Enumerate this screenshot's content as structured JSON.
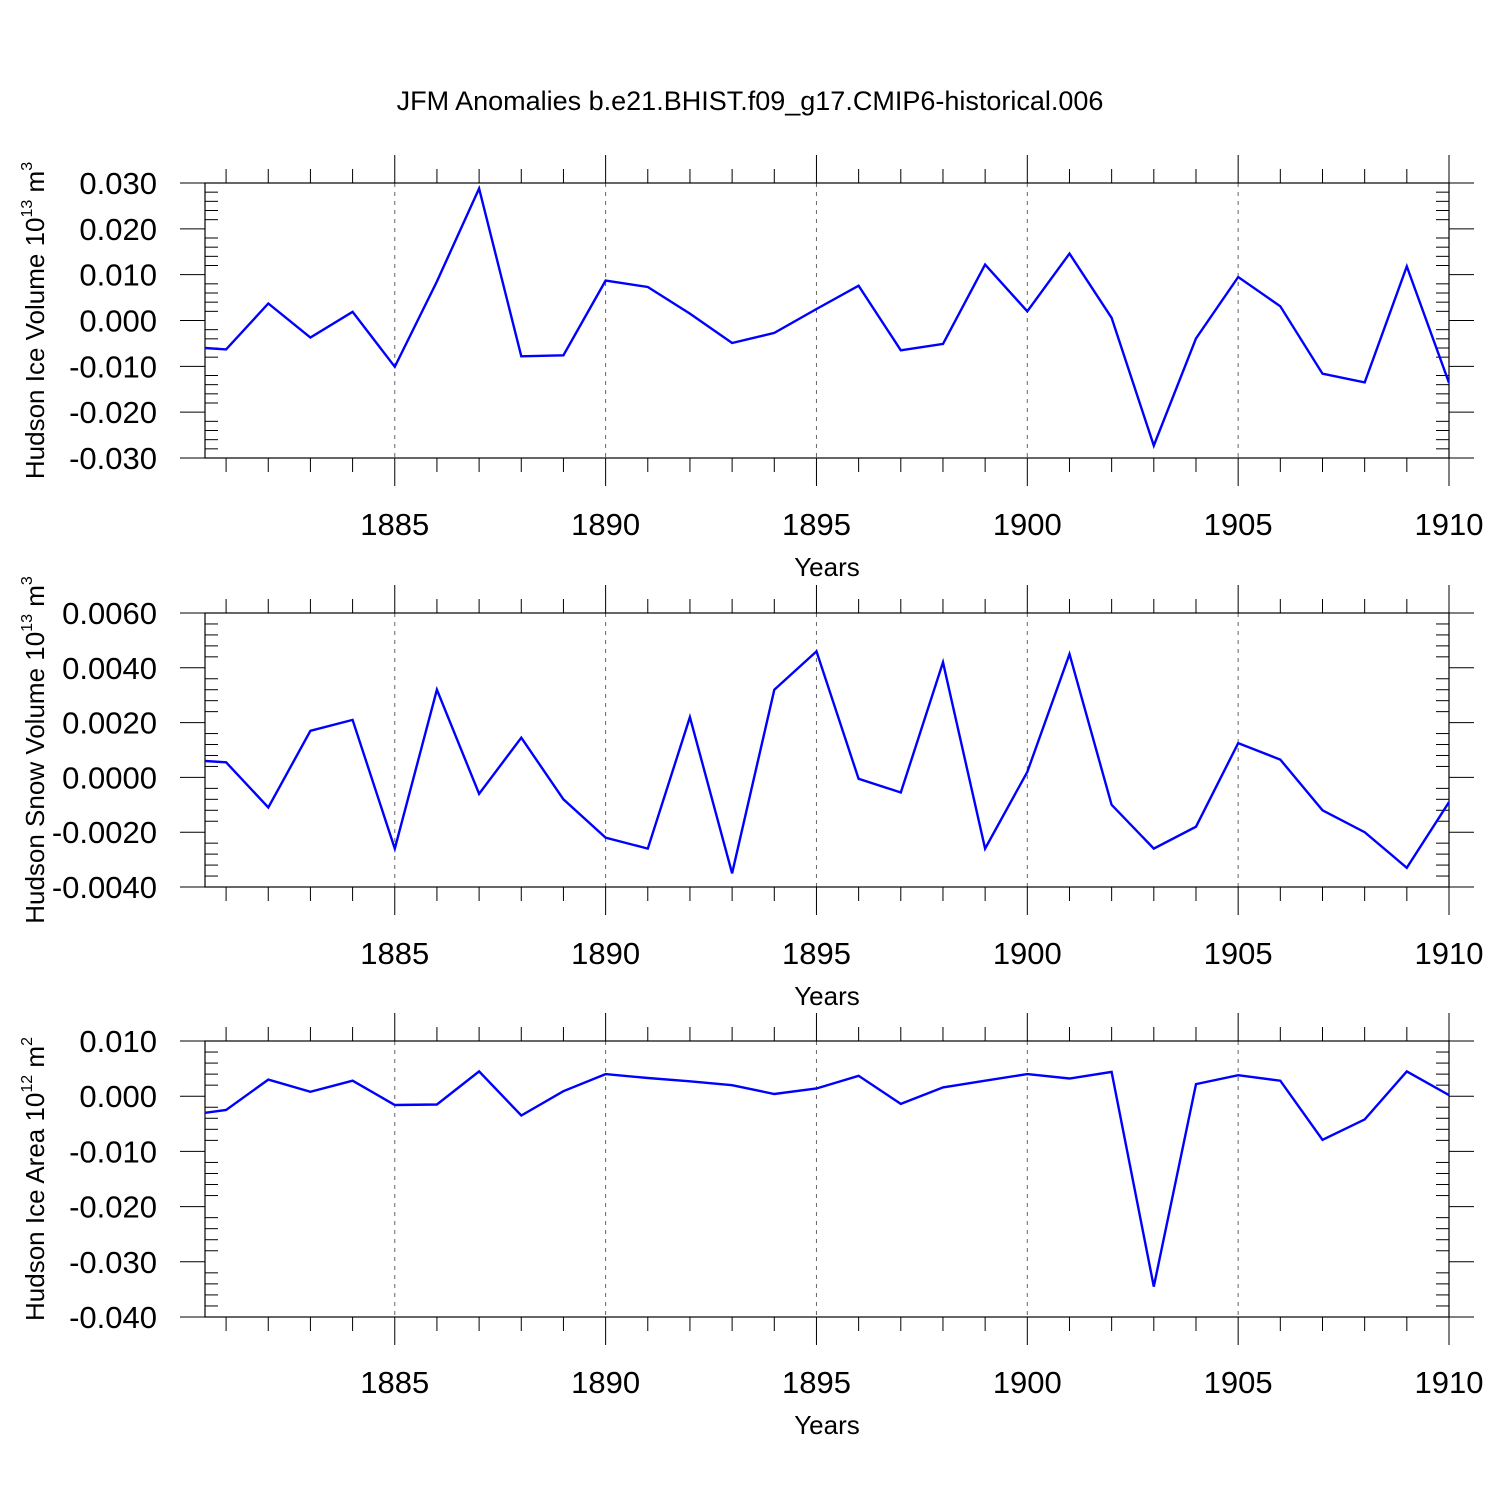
{
  "title": "JFM Anomalies b.e21.BHIST.f09_g17.CMIP6-historical.006",
  "colors": {
    "line": "#0000ff",
    "axis": "#000000",
    "grid": "#666666"
  },
  "chart_data": [
    {
      "type": "line",
      "xlabel": "Years",
      "ylabel": {
        "base": "Hudson Ice Volume 10",
        "exp": "13",
        "unit": " m",
        "unit_exp": "3"
      },
      "xlim": [
        1880.5,
        1910
      ],
      "ylim": [
        -0.03,
        0.03
      ],
      "x_ticks": [
        1885,
        1890,
        1895,
        1900,
        1905,
        1910
      ],
      "x_tick_labels": [
        "1885",
        "1890",
        "1895",
        "1900",
        "1905",
        "1910"
      ],
      "y_ticks": [
        0.03,
        0.02,
        0.01,
        0.0,
        -0.01,
        -0.02,
        -0.03
      ],
      "y_tick_labels": [
        "0.030",
        "0.020",
        "0.010",
        "0.000",
        "-0.010",
        "-0.020",
        "-0.030"
      ],
      "grid": "vertical dashed at major x ticks",
      "x": [
        1880.5,
        1881,
        1882,
        1883,
        1884,
        1885,
        1886,
        1887,
        1888,
        1889,
        1890,
        1891,
        1892,
        1893,
        1894,
        1895,
        1896,
        1897,
        1898,
        1899,
        1900,
        1901,
        1902,
        1903,
        1904,
        1905,
        1906,
        1907,
        1908,
        1909,
        1910
      ],
      "values": [
        -0.006,
        -0.0063,
        0.0037,
        -0.0037,
        0.0019,
        -0.0101,
        0.0085,
        0.0288,
        -0.0078,
        -0.0076,
        0.0087,
        0.0073,
        0.0015,
        -0.0049,
        -0.0027,
        0.0025,
        0.0076,
        -0.0065,
        -0.0051,
        0.0122,
        0.002,
        0.0146,
        0.0006,
        -0.0273,
        -0.0039,
        0.0095,
        0.0031,
        -0.0116,
        -0.0135,
        0.0118,
        -0.0136
      ]
    },
    {
      "type": "line",
      "xlabel": "Years",
      "ylabel": {
        "base": "Hudson Snow Volume 10",
        "exp": "13",
        "unit": " m",
        "unit_exp": "3"
      },
      "xlim": [
        1880.5,
        1910
      ],
      "ylim": [
        -0.004,
        0.006
      ],
      "x_ticks": [
        1885,
        1890,
        1895,
        1900,
        1905,
        1910
      ],
      "x_tick_labels": [
        "1885",
        "1890",
        "1895",
        "1900",
        "1905",
        "1910"
      ],
      "y_ticks": [
        0.006,
        0.004,
        0.002,
        0.0,
        -0.002,
        -0.004
      ],
      "y_tick_labels": [
        "0.0060",
        "0.0040",
        "0.0020",
        "0.0000",
        "-0.0020",
        "-0.0040"
      ],
      "grid": "vertical dashed at major x ticks",
      "x": [
        1880.5,
        1881,
        1882,
        1883,
        1884,
        1885,
        1886,
        1887,
        1888,
        1889,
        1890,
        1891,
        1892,
        1893,
        1894,
        1895,
        1896,
        1897,
        1898,
        1899,
        1900,
        1901,
        1902,
        1903,
        1904,
        1905,
        1906,
        1907,
        1908,
        1909,
        1910
      ],
      "values": [
        0.0006,
        0.00055,
        -0.0011,
        0.0017,
        0.0021,
        -0.0026,
        0.0032,
        -0.0006,
        0.00145,
        -0.0008,
        -0.0022,
        -0.0026,
        0.0022,
        -0.0035,
        0.0032,
        0.0046,
        -5e-05,
        -0.00055,
        0.0042,
        -0.0026,
        0.0002,
        0.0045,
        -0.001,
        -0.0026,
        -0.0018,
        0.00125,
        0.00065,
        -0.0012,
        -0.002,
        -0.0033,
        -0.0009
      ]
    },
    {
      "type": "line",
      "xlabel": "Years",
      "ylabel": {
        "base": "Hudson Ice Area 10",
        "exp": "12",
        "unit": " m",
        "unit_exp": "2"
      },
      "xlim": [
        1880.5,
        1910
      ],
      "ylim": [
        -0.04,
        0.01
      ],
      "x_ticks": [
        1885,
        1890,
        1895,
        1900,
        1905,
        1910
      ],
      "x_tick_labels": [
        "1885",
        "1890",
        "1895",
        "1900",
        "1905",
        "1910"
      ],
      "y_ticks": [
        0.01,
        0.0,
        -0.01,
        -0.02,
        -0.03,
        -0.04
      ],
      "y_tick_labels": [
        "0.010",
        "0.000",
        "-0.010",
        "-0.020",
        "-0.030",
        "-0.040"
      ],
      "grid": "vertical dashed at major x ticks",
      "x": [
        1880.5,
        1881,
        1882,
        1883,
        1884,
        1885,
        1886,
        1887,
        1888,
        1889,
        1890,
        1891,
        1892,
        1893,
        1894,
        1895,
        1896,
        1897,
        1898,
        1899,
        1900,
        1901,
        1902,
        1903,
        1904,
        1905,
        1906,
        1907,
        1908,
        1909,
        1910
      ],
      "values": [
        -0.003,
        -0.0025,
        0.003,
        0.0008,
        0.0028,
        -0.0016,
        -0.0015,
        0.0045,
        -0.0035,
        0.0009,
        0.004,
        0.0033,
        0.0027,
        0.002,
        0.0004,
        0.0014,
        0.0037,
        -0.0014,
        0.0016,
        0.0028,
        0.004,
        0.0032,
        0.0044,
        -0.0345,
        0.0022,
        0.0038,
        0.0028,
        -0.0079,
        -0.0042,
        0.0045,
        0.0002
      ]
    }
  ]
}
